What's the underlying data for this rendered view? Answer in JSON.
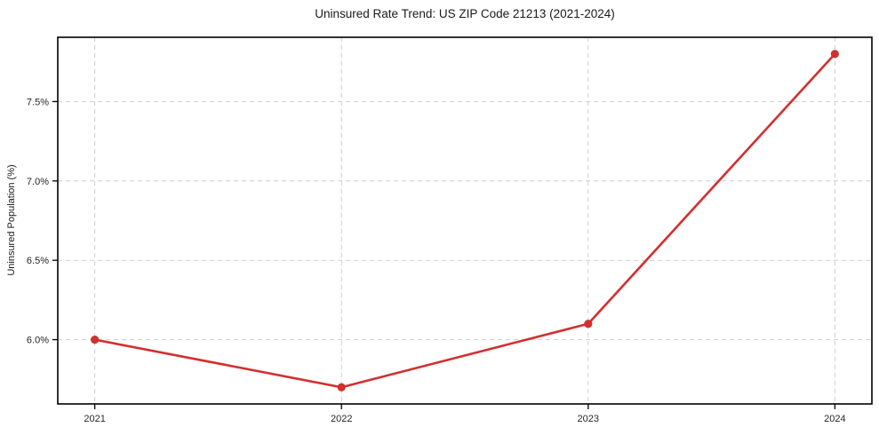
{
  "figure": {
    "background_color": "#ffffff"
  },
  "chart_data": {
    "type": "line",
    "title": "Uninsured Rate Trend: US ZIP Code 21213 (2021-2024)",
    "xlabel": "",
    "ylabel": "Uninsured Population (%)",
    "x": [
      2021,
      2022,
      2023,
      2024
    ],
    "x_tick_labels": [
      "2021",
      "2022",
      "2023",
      "2024"
    ],
    "values": [
      6.0,
      5.7,
      6.1,
      7.8
    ],
    "y_ticks": [
      6.0,
      6.5,
      7.0,
      7.5
    ],
    "y_tick_labels": [
      "6.0%",
      "6.5%",
      "7.0%",
      "7.5%"
    ],
    "xlim": [
      2020.85,
      2024.15
    ],
    "ylim": [
      5.595,
      7.905
    ],
    "grid": true,
    "grid_style": "dashed",
    "legend_position": "none",
    "colors": {
      "line": "#d32f2f",
      "marker": "#d32f2f",
      "grid": "#cdcdcd",
      "frame": "#000000",
      "tick_text": "#262626"
    }
  }
}
